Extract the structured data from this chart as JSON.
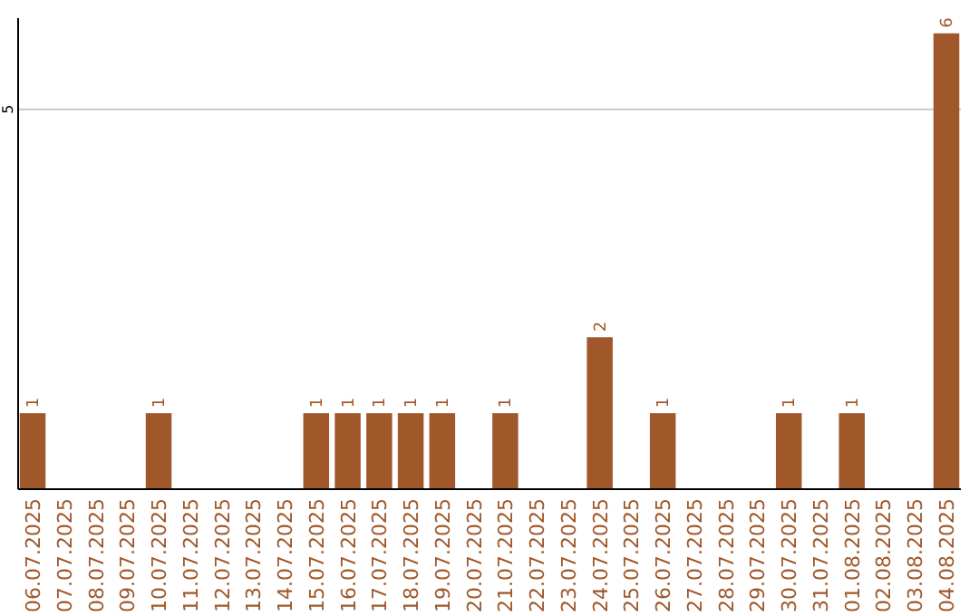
{
  "chart_data": {
    "type": "bar",
    "categories": [
      "06.07.2025",
      "07.07.2025",
      "08.07.2025",
      "09.07.2025",
      "10.07.2025",
      "11.07.2025",
      "12.07.2025",
      "13.07.2025",
      "14.07.2025",
      "15.07.2025",
      "16.07.2025",
      "17.07.2025",
      "18.07.2025",
      "19.07.2025",
      "20.07.2025",
      "21.07.2025",
      "22.07.2025",
      "23.07.2025",
      "24.07.2025",
      "25.07.2025",
      "26.07.2025",
      "27.07.2025",
      "28.07.2025",
      "29.07.2025",
      "30.07.2025",
      "31.07.2025",
      "01.08.2025",
      "02.08.2025",
      "03.08.2025",
      "04.08.2025"
    ],
    "values": [
      1,
      0,
      0,
      0,
      1,
      0,
      0,
      0,
      0,
      1,
      1,
      1,
      1,
      1,
      0,
      1,
      0,
      0,
      2,
      0,
      1,
      0,
      0,
      0,
      1,
      0,
      1,
      0,
      0,
      6
    ],
    "value_labels": [
      "1",
      null,
      null,
      null,
      "1",
      null,
      null,
      null,
      null,
      "1",
      "1",
      "1",
      "1",
      "1",
      null,
      "1",
      null,
      null,
      "2",
      null,
      "1",
      null,
      null,
      null,
      "1",
      null,
      "1",
      null,
      null,
      "6"
    ],
    "color": "#a0582a",
    "ylim": [
      0,
      6.2
    ],
    "yticks": [
      5
    ],
    "grid": "y"
  }
}
